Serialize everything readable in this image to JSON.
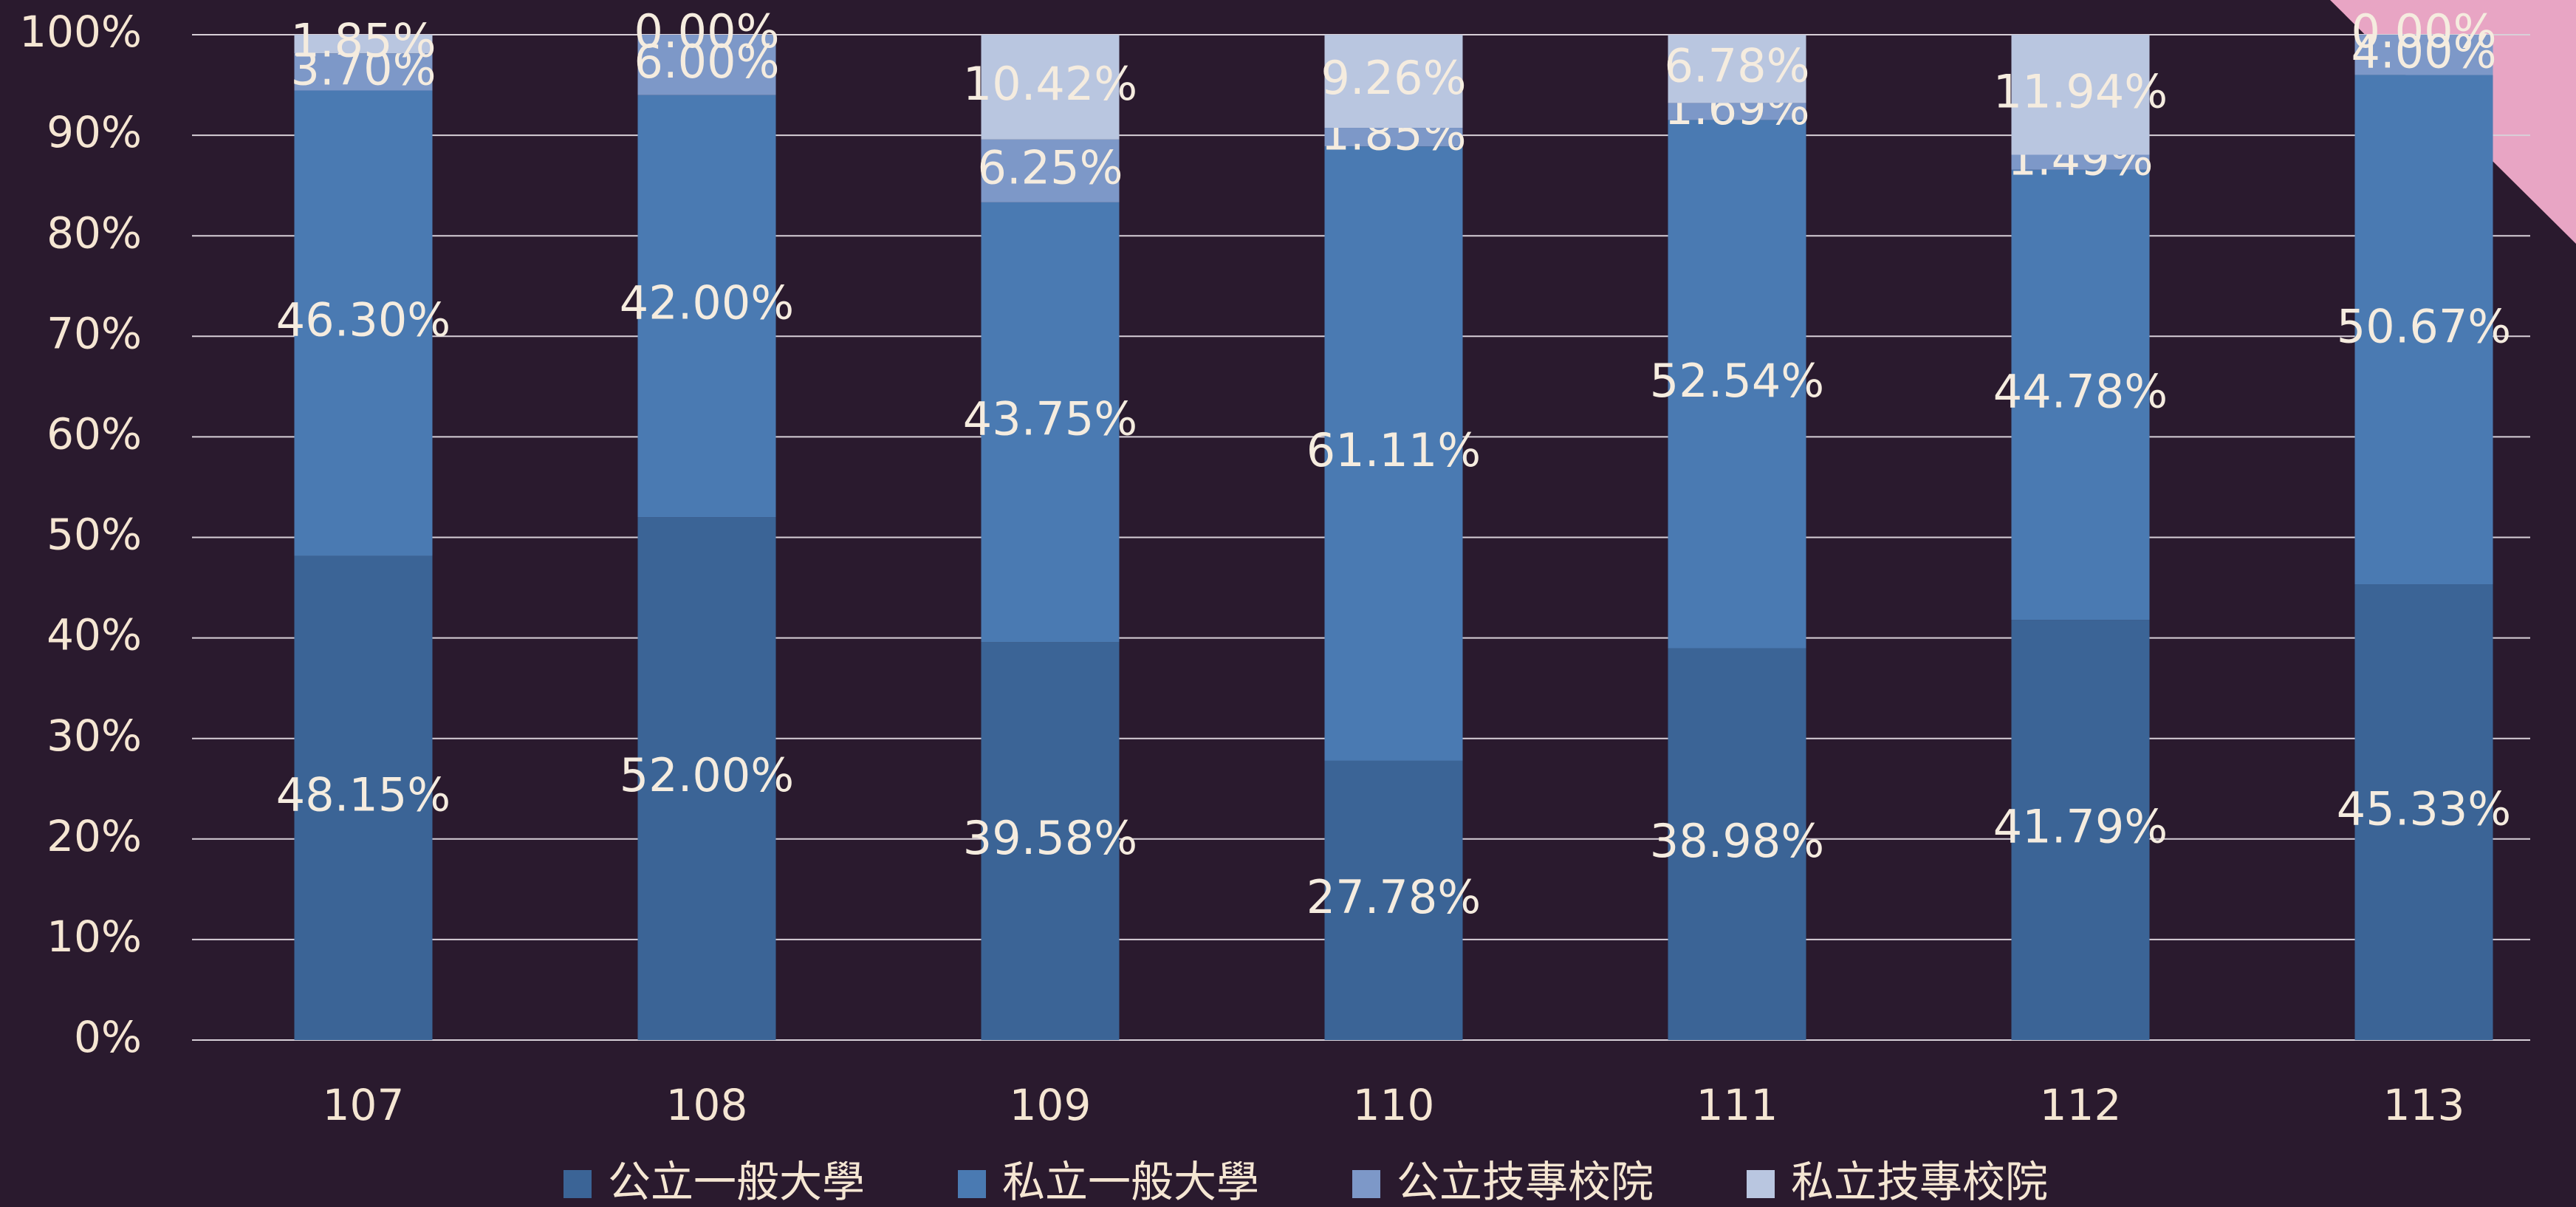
{
  "chart_data": {
    "type": "stacked_bar",
    "categories": [
      "107",
      "108",
      "109",
      "110",
      "111",
      "112",
      "113"
    ],
    "series": [
      {
        "name": "公立一般大學",
        "color": "#3b6496",
        "values": [
          48.15,
          52.0,
          39.58,
          27.78,
          38.98,
          41.79,
          45.33
        ],
        "value_labels": [
          "48.15%",
          "52.00%",
          "39.58%",
          "27.78%",
          "38.98%",
          "41.79%",
          "45.33%"
        ]
      },
      {
        "name": "私立一般大學",
        "color": "#4a7ab2",
        "values": [
          46.3,
          42.0,
          43.75,
          61.11,
          52.54,
          44.78,
          50.67
        ],
        "value_labels": [
          "46.30%",
          "42.00%",
          "43.75%",
          "61.11%",
          "52.54%",
          "44.78%",
          "50.67%"
        ]
      },
      {
        "name": "公立技專校院",
        "color": "#7d98c8",
        "values": [
          3.7,
          6.0,
          6.25,
          1.85,
          1.69,
          1.49,
          4.0
        ],
        "value_labels": [
          "3.70%",
          "6.00%",
          "6.25%",
          "1.85%",
          "1.69%",
          "1.49%",
          "4.00%"
        ]
      },
      {
        "name": "私立技專校院",
        "color": "#b9c6e0",
        "values": [
          1.85,
          0.0,
          10.42,
          9.26,
          6.78,
          11.94,
          0.0
        ],
        "value_labels": [
          "1.85%",
          "0.00%",
          "10.42%",
          "9.26%",
          "6.78%",
          "11.94%",
          "0.00%"
        ]
      }
    ],
    "ylim": [
      0,
      100
    ],
    "yticks": [
      {
        "value": 0,
        "label": "0%"
      },
      {
        "value": 10,
        "label": "10%"
      },
      {
        "value": 20,
        "label": "20%"
      },
      {
        "value": 30,
        "label": "30%"
      },
      {
        "value": 40,
        "label": "40%"
      },
      {
        "value": 50,
        "label": "50%"
      },
      {
        "value": 60,
        "label": "60%"
      },
      {
        "value": 70,
        "label": "70%"
      },
      {
        "value": 80,
        "label": "80%"
      },
      {
        "value": 90,
        "label": "90%"
      },
      {
        "value": 100,
        "label": "100%"
      }
    ],
    "grid": true,
    "legend": "bottom"
  }
}
